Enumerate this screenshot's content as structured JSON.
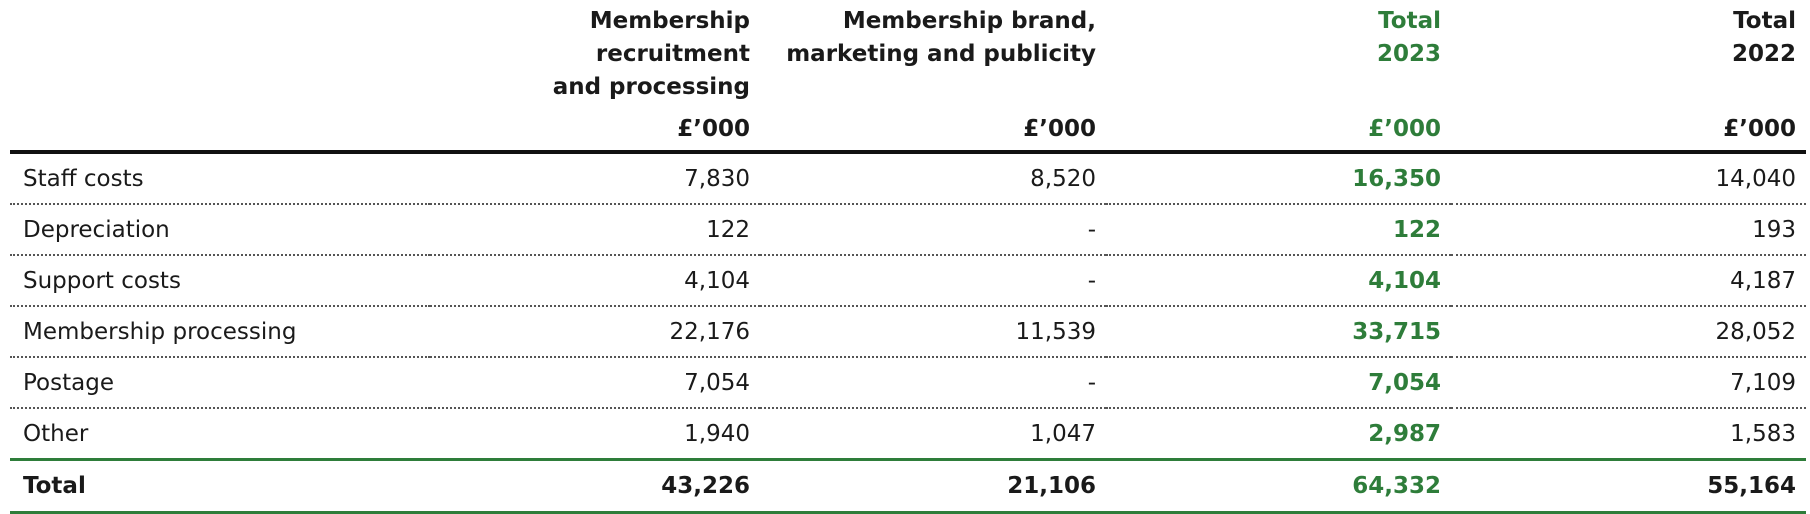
{
  "colors": {
    "accent_green": "#2e7d3a",
    "text": "#1a1a1a",
    "rule": "#111111"
  },
  "table": {
    "headers": {
      "col1_line1": "Membership recruitment",
      "col1_line2": "and processing",
      "col2_line1": "Membership brand,",
      "col2_line2": "marketing and publicity",
      "col3_line1": "Total",
      "col3_line2": "2023",
      "col4_line1": "Total",
      "col4_line2": "2022"
    },
    "units": [
      "£’000",
      "£’000",
      "£’000",
      "£’000"
    ],
    "rows": [
      {
        "label": "Staff costs",
        "v1": "7,830",
        "v2": "8,520",
        "v3": "16,350",
        "v4": "14,040"
      },
      {
        "label": "Depreciation",
        "v1": "122",
        "v2": "-",
        "v3": "122",
        "v4": "193"
      },
      {
        "label": "Support costs",
        "v1": "4,104",
        "v2": "-",
        "v3": "4,104",
        "v4": "4,187"
      },
      {
        "label": "Membership processing",
        "v1": "22,176",
        "v2": "11,539",
        "v3": "33,715",
        "v4": "28,052"
      },
      {
        "label": "Postage",
        "v1": "7,054",
        "v2": "-",
        "v3": "7,054",
        "v4": "7,109"
      },
      {
        "label": "Other",
        "v1": "1,940",
        "v2": "1,047",
        "v3": "2,987",
        "v4": "1,583"
      }
    ],
    "total": {
      "label": "Total",
      "v1": "43,226",
      "v2": "21,106",
      "v3": "64,332",
      "v4": "55,164"
    }
  }
}
